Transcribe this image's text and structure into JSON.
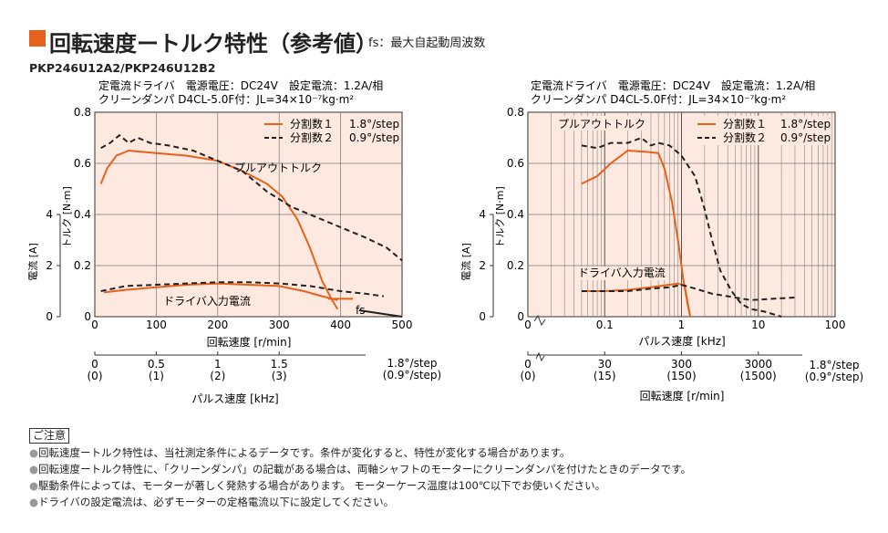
{
  "header": {
    "title": "回転速度ートルク特性（参考値）",
    "title_note": "fs：最大自起動周波数",
    "model": "PKP246U12A2/PKP246U12B2"
  },
  "colors": {
    "accent": "#e8611a",
    "plot_bg": "#fde9df",
    "series1": "#e8611a",
    "series2": "#222222"
  },
  "chart_data": [
    {
      "type": "line",
      "cond_line1": "定電流ドライバ　電源電圧：DC24V　設定電流：1.2A/相",
      "cond_line2": "クリーンダンパ D4CL-5.0F付：JL=34×10⁻⁷kg·m²",
      "ylabel": "トルク [N·m]",
      "ylabel2": "電流 [A]",
      "xlabel": "回転速度 [r/min]",
      "xlabel2": "パルス速度 [kHz]",
      "xlim": [
        0,
        500
      ],
      "ylim": [
        0,
        0.8
      ],
      "xticks": [
        "0",
        "100",
        "200",
        "300",
        "400",
        "500"
      ],
      "yticks": [
        "0",
        "0.2",
        "0.4",
        "0.6",
        "0.8"
      ],
      "current_ticks": [
        "0",
        "2",
        "4"
      ],
      "pulse_ticks": [
        {
          "top": "0",
          "bottom": "(0)"
        },
        {
          "top": "0.5",
          "bottom": "(1)"
        },
        {
          "top": "1",
          "bottom": "(2)"
        },
        {
          "top": "1.5",
          "bottom": "(3)"
        }
      ],
      "pulse_unit_top": "1.8°/step",
      "pulse_unit_bottom": "(0.9°/step)",
      "annotations": {
        "pullout": "プルアウトトルク",
        "driver": "ドライバ入力電流",
        "fs": "fs"
      },
      "series": [
        {
          "name": "分割数１　1.8°/step",
          "style": "solid",
          "color": "#e8611a",
          "torque": [
            [
              10,
              0.52
            ],
            [
              20,
              0.58
            ],
            [
              35,
              0.63
            ],
            [
              55,
              0.65
            ],
            [
              100,
              0.64
            ],
            [
              150,
              0.63
            ],
            [
              200,
              0.61
            ],
            [
              240,
              0.57
            ],
            [
              280,
              0.52
            ],
            [
              305,
              0.47
            ],
            [
              330,
              0.38
            ],
            [
              350,
              0.27
            ],
            [
              370,
              0.14
            ],
            [
              385,
              0.07
            ],
            [
              395,
              0.03
            ]
          ],
          "current": [
            [
              15,
              0.095
            ],
            [
              50,
              0.105
            ],
            [
              100,
              0.115
            ],
            [
              150,
              0.125
            ],
            [
              200,
              0.13
            ],
            [
              250,
              0.125
            ],
            [
              300,
              0.12
            ],
            [
              340,
              0.1
            ],
            [
              370,
              0.08
            ],
            [
              395,
              0.065
            ]
          ],
          "fs_points": [
            [
              380,
              0.07
            ],
            [
              420,
              0.07
            ]
          ]
        },
        {
          "name": "分割数２　0.9°/step",
          "style": "dashed",
          "color": "#222222",
          "torque": [
            [
              10,
              0.66
            ],
            [
              25,
              0.68
            ],
            [
              40,
              0.71
            ],
            [
              55,
              0.68
            ],
            [
              70,
              0.7
            ],
            [
              90,
              0.68
            ],
            [
              120,
              0.67
            ],
            [
              160,
              0.65
            ],
            [
              200,
              0.61
            ],
            [
              240,
              0.57
            ],
            [
              280,
              0.49
            ],
            [
              320,
              0.43
            ],
            [
              360,
              0.39
            ],
            [
              400,
              0.35
            ],
            [
              440,
              0.31
            ],
            [
              475,
              0.27
            ],
            [
              500,
              0.22
            ]
          ],
          "current": [
            [
              10,
              0.1
            ],
            [
              50,
              0.12
            ],
            [
              100,
              0.125
            ],
            [
              150,
              0.13
            ],
            [
              200,
              0.135
            ],
            [
              250,
              0.135
            ],
            [
              300,
              0.13
            ],
            [
              350,
              0.12
            ],
            [
              400,
              0.1
            ],
            [
              440,
              0.09
            ],
            [
              470,
              0.08
            ]
          ],
          "fs_points": [
            [
              430,
              0.025
            ],
            [
              500,
              0.0
            ]
          ]
        }
      ]
    },
    {
      "type": "line",
      "xscale": "log",
      "cond_line1": "定電流ドライバ　電源電圧：DC24V　設定電流：1.2A/相",
      "cond_line2": "クリーンダンパ D4CL-5.0F付：JL=34×10⁻⁷kg·m²",
      "ylabel": "トルク [N·m]",
      "ylabel2": "電流 [A]",
      "xlabel": "パルス速度 [kHz]",
      "xlabel2": "回転速度 [r/min]",
      "xlim": [
        0.01,
        100
      ],
      "ylim": [
        0,
        0.8
      ],
      "xticks": [
        "0",
        "0.1",
        "1",
        "10",
        "100"
      ],
      "yticks": [
        "0",
        "0.2",
        "0.4",
        "0.6",
        "0.8"
      ],
      "current_ticks": [
        "0",
        "2",
        "4"
      ],
      "speed_ticks": [
        {
          "top": "0",
          "bottom": "(0)"
        },
        {
          "top": "30",
          "bottom": "(15)"
        },
        {
          "top": "300",
          "bottom": "(150)"
        },
        {
          "top": "3000",
          "bottom": "(1500)"
        }
      ],
      "speed_unit_top": "1.8°/step",
      "speed_unit_bottom": "(0.9°/step)",
      "annotations": {
        "pullout": "プルアウトトルク",
        "driver": "ドライバ入力電流"
      },
      "series": [
        {
          "name": "分割数１　1.8°/step",
          "style": "solid",
          "color": "#e8611a",
          "torque": [
            [
              0.05,
              0.52
            ],
            [
              0.08,
              0.55
            ],
            [
              0.12,
              0.6
            ],
            [
              0.2,
              0.65
            ],
            [
              0.35,
              0.645
            ],
            [
              0.5,
              0.64
            ],
            [
              0.6,
              0.58
            ],
            [
              0.75,
              0.45
            ],
            [
              0.9,
              0.3
            ],
            [
              1.05,
              0.15
            ],
            [
              1.2,
              0.05
            ],
            [
              1.3,
              0.0
            ]
          ],
          "current": [
            [
              0.05,
              0.1
            ],
            [
              0.1,
              0.1
            ],
            [
              0.2,
              0.105
            ],
            [
              0.4,
              0.115
            ],
            [
              0.7,
              0.125
            ],
            [
              0.9,
              0.13
            ],
            [
              1.1,
              0.12
            ],
            [
              1.3,
              0.0
            ]
          ]
        },
        {
          "name": "分割数２　0.9°/step",
          "style": "dashed",
          "color": "#222222",
          "torque": [
            [
              0.05,
              0.67
            ],
            [
              0.08,
              0.66
            ],
            [
              0.12,
              0.68
            ],
            [
              0.2,
              0.68
            ],
            [
              0.3,
              0.7
            ],
            [
              0.4,
              0.67
            ],
            [
              0.5,
              0.68
            ],
            [
              0.7,
              0.67
            ],
            [
              1.0,
              0.63
            ],
            [
              1.5,
              0.55
            ],
            [
              2.0,
              0.42
            ],
            [
              2.5,
              0.3
            ],
            [
              3.2,
              0.18
            ],
            [
              4.5,
              0.1
            ],
            [
              6,
              0.05
            ],
            [
              8,
              0.03
            ],
            [
              12,
              0.02
            ],
            [
              20,
              0.0
            ]
          ],
          "current": [
            [
              0.05,
              0.1
            ],
            [
              0.1,
              0.1
            ],
            [
              0.2,
              0.1
            ],
            [
              0.4,
              0.11
            ],
            [
              0.7,
              0.115
            ],
            [
              1.0,
              0.125
            ],
            [
              1.5,
              0.11
            ],
            [
              2.5,
              0.09
            ],
            [
              4,
              0.08
            ],
            [
              8,
              0.065
            ],
            [
              15,
              0.07
            ],
            [
              30,
              0.075
            ]
          ]
        }
      ]
    }
  ],
  "legend": {
    "s1_label": "分割数１",
    "s1_step": "1.8°/step",
    "s2_label": "分割数２",
    "s2_step": "0.9°/step"
  },
  "notes": {
    "title": "ご注意",
    "items": [
      "回転速度ートルク特性は、当社測定条件によるデータです。条件が変化すると、特性が変化する場合があります。",
      "回転速度ートルク特性に、「クリーンダンパ」の記載がある場合は、両軸シャフトのモーターにクリーンダンパを付けたときのデータです。",
      "駆動条件によっては、モーターが著しく発熱する場合があります。 モーターケース温度は100℃以下でお使いください。",
      "ドライバの設定電流は、必ずモーターの定格電流以下に設定してください。"
    ]
  }
}
